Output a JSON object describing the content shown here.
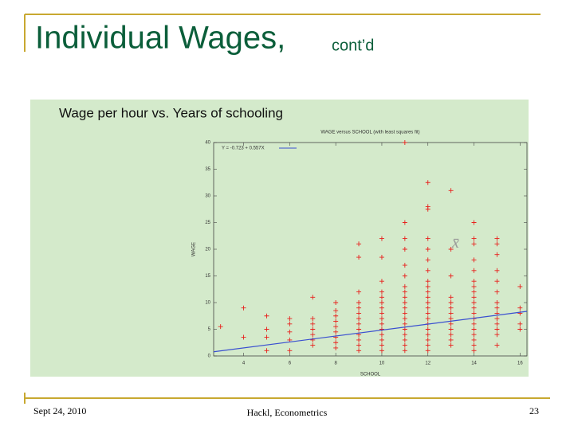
{
  "slide": {
    "title": "Individual Wages,",
    "title_suffix": "cont’d",
    "subtitle": "Wage per hour vs. Years of schooling",
    "footer_left": "Sept 24, 2010",
    "footer_center": "Hackl, Econometrics",
    "page": "23"
  },
  "chart_data": {
    "type": "scatter",
    "title": "WAGE versus SCHOOL (with least squares fit)",
    "x_label": "SCHOOL",
    "y_label": "WAGE",
    "xlim": [
      2.7,
      16.3
    ],
    "xticks": [
      4,
      6,
      8,
      10,
      12,
      14,
      16
    ],
    "ylim": [
      0,
      40
    ],
    "yticks": [
      0,
      5,
      10,
      15,
      20,
      25,
      30,
      35,
      40
    ],
    "annotation": "x̄",
    "annotation_x": 13.2,
    "annotation_y": 21,
    "series": [
      {
        "name": "WAGE",
        "color": "#e8201c",
        "marker": "+",
        "x": [
          3,
          4,
          4,
          5,
          5,
          5,
          5,
          6,
          6,
          6,
          6,
          6,
          7,
          7,
          7,
          7,
          7,
          7,
          7,
          8,
          8,
          8,
          8,
          8,
          8,
          8,
          8,
          8,
          9,
          9,
          9,
          9,
          9,
          9,
          9,
          9,
          9,
          9,
          9,
          9,
          9,
          10,
          10,
          10,
          10,
          10,
          10,
          10,
          10,
          10,
          10,
          10,
          10,
          10,
          10,
          10,
          11,
          11,
          11,
          11,
          11,
          11,
          11,
          11,
          11,
          11,
          11,
          11,
          11,
          11,
          11,
          11,
          11,
          11,
          11,
          12,
          12,
          12,
          12,
          12,
          12,
          12,
          12,
          12,
          12,
          12,
          12,
          12,
          12,
          12,
          12,
          12,
          12,
          12,
          12,
          12,
          13,
          13,
          13,
          13,
          13,
          13,
          13,
          13,
          13,
          13,
          13,
          13,
          13,
          14,
          14,
          14,
          14,
          14,
          14,
          14,
          14,
          14,
          14,
          14,
          14,
          14,
          14,
          14,
          14,
          14,
          14,
          14,
          15,
          15,
          15,
          15,
          15,
          15,
          15,
          15,
          15,
          15,
          15,
          15,
          15,
          15,
          16,
          16,
          16,
          16,
          16
        ],
        "values": [
          5.5,
          3.5,
          9,
          1,
          3.5,
          5,
          7.5,
          1,
          3,
          4.5,
          6,
          7,
          2,
          3,
          4,
          5,
          6,
          7,
          11,
          1.5,
          2.5,
          3.5,
          4.5,
          5.5,
          6.5,
          7.5,
          8.5,
          10,
          18.5,
          21,
          1,
          2,
          3,
          4,
          5,
          6,
          7,
          8,
          9,
          10,
          12,
          22,
          18.5,
          14,
          1,
          2,
          3,
          4,
          5,
          6,
          7,
          8,
          9,
          10,
          11,
          12,
          40,
          25,
          22,
          20,
          17,
          15,
          1,
          2,
          3,
          4,
          5,
          6,
          7,
          8,
          9,
          10,
          11,
          12,
          13,
          32.5,
          28,
          27.5,
          22,
          20,
          18,
          16,
          14,
          1,
          2,
          3,
          4,
          5,
          6,
          7,
          8,
          9,
          10,
          11,
          12,
          13,
          31,
          20,
          15,
          2,
          3,
          4,
          5,
          6,
          7,
          8,
          9,
          10,
          11,
          25,
          22,
          21,
          18,
          16,
          14,
          1,
          2,
          3,
          4,
          5,
          6,
          7,
          8,
          9,
          10,
          11,
          12,
          13,
          22,
          21,
          19,
          16,
          14,
          12,
          2,
          4,
          5,
          6,
          7,
          8,
          9,
          10,
          13,
          9,
          8,
          6,
          5
        ]
      },
      {
        "name": "Y = -0.723 + 0.557X",
        "color": "#3a4fd0",
        "line": true,
        "x": [
          2.7,
          16.3
        ],
        "values": [
          0.781,
          8.356
        ]
      }
    ]
  }
}
